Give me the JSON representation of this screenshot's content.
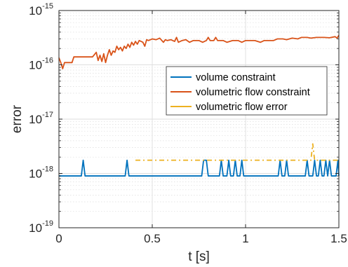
{
  "chart_data": {
    "type": "line",
    "title": "",
    "xlabel": "t [s]",
    "ylabel": "error",
    "xlim": [
      0,
      1.5
    ],
    "ylim": [
      1e-19,
      1e-15
    ],
    "yscale": "log",
    "grid": true,
    "minor_grid": true,
    "legend_position": "center-right",
    "x_ticks": [
      {
        "value": 0,
        "label": "0"
      },
      {
        "value": 0.5,
        "label": "0.5"
      },
      {
        "value": 1,
        "label": "1"
      },
      {
        "value": 1.5,
        "label": "1.5"
      }
    ],
    "y_ticks": [
      {
        "value": 1e-19,
        "base": "10",
        "exp": "-19"
      },
      {
        "value": 1e-18,
        "base": "10",
        "exp": "-18"
      },
      {
        "value": 1e-17,
        "base": "10",
        "exp": "-17"
      },
      {
        "value": 1e-16,
        "base": "10",
        "exp": "-16"
      },
      {
        "value": 1e-15,
        "base": "10",
        "exp": "-15"
      }
    ],
    "series": [
      {
        "name": "volume constraint",
        "color": "#0072BD",
        "line_style": "solid",
        "points": [
          [
            0,
            9e-19
          ],
          [
            0.12,
            9e-19
          ],
          [
            0.13,
            1.75e-18
          ],
          [
            0.14,
            9e-19
          ],
          [
            0.355,
            9e-19
          ],
          [
            0.365,
            1.75e-18
          ],
          [
            0.375,
            9e-19
          ],
          [
            0.765,
            9e-19
          ],
          [
            0.775,
            1.75e-18
          ],
          [
            0.79,
            1.75e-18
          ],
          [
            0.8,
            9e-19
          ],
          [
            0.86,
            9e-19
          ],
          [
            0.87,
            1.75e-18
          ],
          [
            0.88,
            9e-19
          ],
          [
            0.9,
            9e-19
          ],
          [
            0.91,
            1.75e-18
          ],
          [
            0.92,
            9e-19
          ],
          [
            0.935,
            9e-19
          ],
          [
            0.945,
            1.75e-18
          ],
          [
            0.955,
            9e-19
          ],
          [
            0.97,
            9e-19
          ],
          [
            0.98,
            1.75e-18
          ],
          [
            0.99,
            9e-19
          ],
          [
            1.175,
            9e-19
          ],
          [
            1.185,
            1.75e-18
          ],
          [
            1.195,
            9e-19
          ],
          [
            1.21,
            9e-19
          ],
          [
            1.22,
            1.75e-18
          ],
          [
            1.23,
            9e-19
          ],
          [
            1.32,
            9e-19
          ],
          [
            1.33,
            1.75e-18
          ],
          [
            1.34,
            9e-19
          ],
          [
            1.36,
            9e-19
          ],
          [
            1.37,
            1.75e-18
          ],
          [
            1.38,
            9e-19
          ],
          [
            1.39,
            9e-19
          ],
          [
            1.4,
            1.75e-18
          ],
          [
            1.41,
            9e-19
          ],
          [
            1.42,
            9e-19
          ],
          [
            1.43,
            1.75e-18
          ],
          [
            1.44,
            9e-19
          ],
          [
            1.45,
            1.75e-18
          ],
          [
            1.46,
            9e-19
          ],
          [
            1.485,
            9e-19
          ],
          [
            1.495,
            1.75e-18
          ],
          [
            1.5,
            9e-19
          ]
        ]
      },
      {
        "name": "volumetric flow constraint",
        "color": "#D95319",
        "line_style": "solid",
        "points": [
          [
            0,
            1.35e-16
          ],
          [
            0.01,
            1.1e-16
          ],
          [
            0.02,
            8.5e-17
          ],
          [
            0.03,
            1.1e-16
          ],
          [
            0.07,
            1.1e-16
          ],
          [
            0.08,
            1.4e-16
          ],
          [
            0.18,
            1.4e-16
          ],
          [
            0.2,
            1.7e-16
          ],
          [
            0.21,
            1.2e-16
          ],
          [
            0.22,
            1.5e-16
          ],
          [
            0.23,
            1.15e-16
          ],
          [
            0.24,
            1.6e-16
          ],
          [
            0.25,
            1.1e-16
          ],
          [
            0.26,
            1.5e-16
          ],
          [
            0.27,
            1.9e-16
          ],
          [
            0.28,
            1.5e-16
          ],
          [
            0.29,
            1.8e-16
          ],
          [
            0.3,
            1.7e-16
          ],
          [
            0.31,
            2.2e-16
          ],
          [
            0.32,
            1.9e-16
          ],
          [
            0.33,
            2.1e-16
          ],
          [
            0.34,
            1.8e-16
          ],
          [
            0.35,
            2.2e-16
          ],
          [
            0.36,
            2e-16
          ],
          [
            0.37,
            2.4e-16
          ],
          [
            0.38,
            2.1e-16
          ],
          [
            0.39,
            2.6e-16
          ],
          [
            0.4,
            2.3e-16
          ],
          [
            0.41,
            2.7e-16
          ],
          [
            0.42,
            2.4e-16
          ],
          [
            0.43,
            2.8e-16
          ],
          [
            0.45,
            2.6e-16
          ],
          [
            0.46,
            2.2e-16
          ],
          [
            0.47,
            2.9e-16
          ],
          [
            0.48,
            2.8e-16
          ],
          [
            0.5,
            3e-16
          ],
          [
            0.52,
            2.9e-16
          ],
          [
            0.54,
            3.1e-16
          ],
          [
            0.56,
            2.6e-16
          ],
          [
            0.57,
            2.9e-16
          ],
          [
            0.58,
            2.8e-16
          ],
          [
            0.6,
            2.9e-16
          ],
          [
            0.62,
            2.7e-16
          ],
          [
            0.63,
            3.2e-16
          ],
          [
            0.64,
            2.6e-16
          ],
          [
            0.66,
            2.8e-16
          ],
          [
            0.68,
            2.9e-16
          ],
          [
            0.7,
            2.6e-16
          ],
          [
            0.72,
            2.8e-16
          ],
          [
            0.75,
            2.8e-16
          ],
          [
            0.77,
            2.6e-16
          ],
          [
            0.79,
            2.8e-16
          ],
          [
            0.8,
            3.2e-16
          ],
          [
            0.81,
            2.8e-16
          ],
          [
            0.83,
            2.8e-16
          ],
          [
            0.84,
            3.2e-16
          ],
          [
            0.85,
            2.8e-16
          ],
          [
            0.88,
            2.8e-16
          ],
          [
            0.9,
            2.6e-16
          ],
          [
            0.93,
            2.8e-16
          ],
          [
            0.96,
            2.8e-16
          ],
          [
            0.98,
            2.6e-16
          ],
          [
            1.0,
            2.8e-16
          ],
          [
            1.05,
            2.8e-16
          ],
          [
            1.08,
            2.6e-16
          ],
          [
            1.1,
            2.8e-16
          ],
          [
            1.15,
            2.8e-16
          ],
          [
            1.17,
            3e-16
          ],
          [
            1.2,
            3e-16
          ],
          [
            1.22,
            2.9e-16
          ],
          [
            1.25,
            3.1e-16
          ],
          [
            1.28,
            3e-16
          ],
          [
            1.3,
            3.2e-16
          ],
          [
            1.33,
            3.2e-16
          ],
          [
            1.35,
            3.1e-16
          ],
          [
            1.38,
            3.2e-16
          ],
          [
            1.42,
            3.2e-16
          ],
          [
            1.45,
            3.15e-16
          ],
          [
            1.48,
            3.3e-16
          ],
          [
            1.49,
            3.1e-16
          ],
          [
            1.5,
            3.5e-16
          ]
        ]
      },
      {
        "name": "volumetric flow error",
        "color": "#EDB120",
        "line_style": "dash-dot",
        "points": [
          [
            0.41,
            1.75e-18
          ],
          [
            1.35,
            1.75e-18
          ],
          [
            1.36,
            3.5e-18
          ],
          [
            1.37,
            1.75e-18
          ],
          [
            1.5,
            1.75e-18
          ]
        ]
      }
    ]
  }
}
